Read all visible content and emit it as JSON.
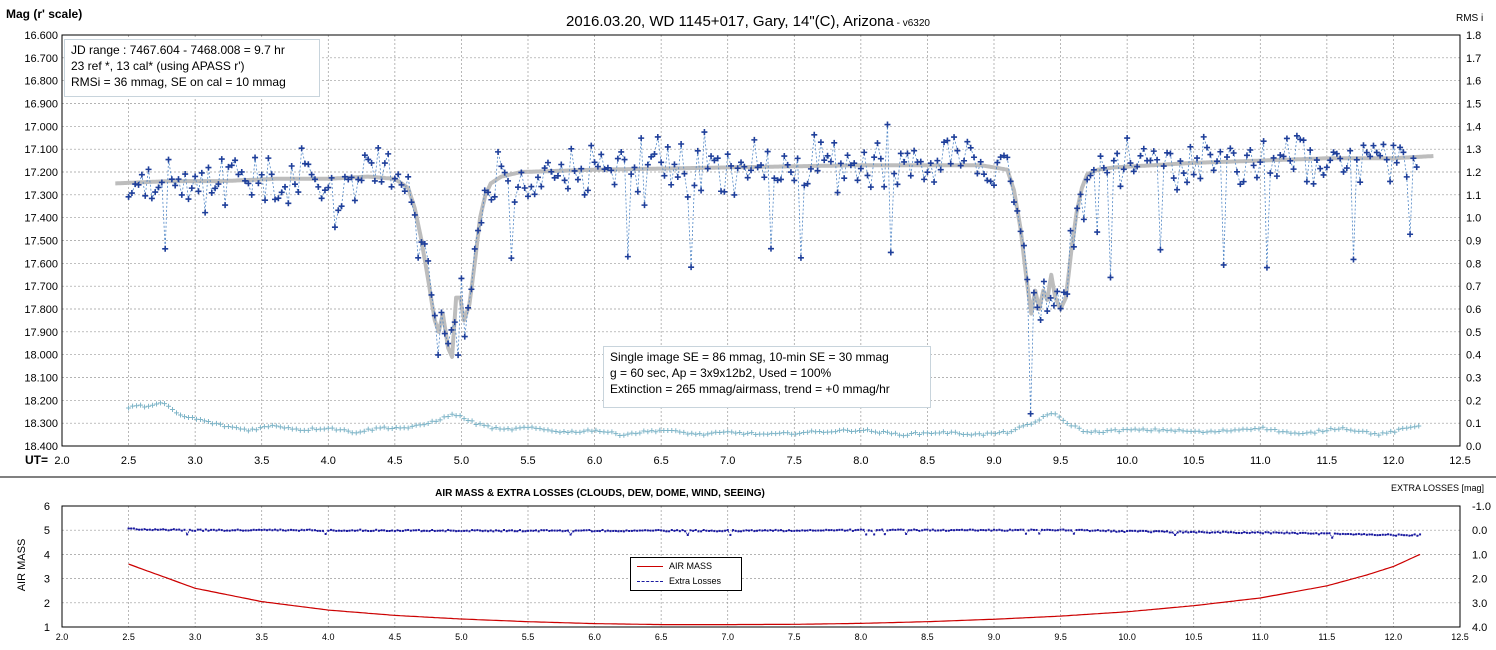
{
  "title": "2016.03.20,  WD 1145+017,  Gary,  14\"(C), Arizona",
  "version": " - v6320",
  "top_panel": {
    "ylabel_left": "Mag (r' scale)",
    "ylabel_right": "RMS i",
    "ut_label": "UT=",
    "info_box_1": [
      "JD range  : 7467.604 - 7468.008  = 9.7 hr",
      " 23 ref *, 13 cal* (using APASS r')",
      "RMSi = 36 mmag, SE on cal = 10 mmag"
    ],
    "info_box_2": [
      "Single image SE = 86 mmag, 10-min SE = 30 mmag",
      "g = 60 sec, Ap = 3x9x12b2, Used = 100%",
      "Extinction = 265 mmag/airmass, trend = +0 mmag/hr"
    ]
  },
  "bottom_panel": {
    "title": "AIR MASS & EXTRA LOSSES (CLOUDS, DEW, DOME, WIND, SEEING)",
    "ylabel_left": "AIR MASS",
    "ylabel_right": "EXTRA LOSSES [mag]",
    "legend": [
      "AIR MASS",
      "Extra Losses"
    ]
  },
  "colors": {
    "data": "#1f3f9a",
    "model": "#bdbdbd",
    "rms": "#7fb5c8",
    "airmass": "#cc0000",
    "extra": "#1a1aa0",
    "grid": "#9a9a9a"
  },
  "chart_data": [
    {
      "type": "scatter",
      "title": "2016.03.20,  WD 1145+017,  Gary,  14\"(C), Arizona",
      "xlabel": "UT",
      "ylabel": "Mag (r' scale)",
      "y2label": "RMS i",
      "xlim": [
        2.0,
        12.5
      ],
      "ylim": [
        18.4,
        16.6
      ],
      "y2lim": [
        0.0,
        1.8
      ],
      "x_ticks": [
        "2.0",
        "2.5",
        "3.0",
        "3.5",
        "4.0",
        "4.5",
        "5.0",
        "5.5",
        "6.0",
        "6.5",
        "7.0",
        "7.5",
        "8.0",
        "8.5",
        "9.0",
        "9.5",
        "10.0",
        "10.5",
        "11.0",
        "11.5",
        "12.0",
        "12.5"
      ],
      "y_ticks": [
        "16.600",
        "16.700",
        "16.800",
        "16.900",
        "17.000",
        "17.100",
        "17.200",
        "17.300",
        "17.400",
        "17.500",
        "17.600",
        "17.700",
        "17.800",
        "17.900",
        "18.000",
        "18.100",
        "18.200",
        "18.300",
        "18.400"
      ],
      "y2_ticks": [
        "1.8",
        "1.7",
        "1.6",
        "1.5",
        "1.4",
        "1.3",
        "1.2",
        "1.1",
        "1.0",
        "0.9",
        "0.8",
        "0.7",
        "0.6",
        "0.5",
        "0.4",
        "0.3",
        "0.2",
        "0.1",
        "0.0"
      ],
      "grid": true,
      "series": [
        {
          "kind": "model",
          "x": [
            2.4,
            2.8,
            3.2,
            3.6,
            4.0,
            4.3,
            4.5,
            4.6,
            4.65,
            4.7,
            4.75,
            4.78,
            4.8,
            4.83,
            4.86,
            4.9,
            4.93,
            4.96,
            4.99,
            5.02,
            5.06,
            5.1,
            5.14,
            5.18,
            5.22,
            5.3,
            5.45,
            6.0,
            7.0,
            8.0,
            8.5,
            8.9,
            9.1,
            9.15,
            9.2,
            9.24,
            9.28,
            9.31,
            9.34,
            9.37,
            9.4,
            9.43,
            9.46,
            9.5,
            9.54,
            9.58,
            9.62,
            9.66,
            9.7,
            9.78,
            9.9,
            10.5,
            11.0,
            11.5,
            12.0,
            12.3
          ],
          "y": [
            17.25,
            17.24,
            17.24,
            17.23,
            17.23,
            17.22,
            17.23,
            17.27,
            17.36,
            17.5,
            17.67,
            17.78,
            17.85,
            17.9,
            17.82,
            17.97,
            18.01,
            17.75,
            17.75,
            17.85,
            17.78,
            17.6,
            17.4,
            17.3,
            17.25,
            17.22,
            17.2,
            17.19,
            17.18,
            17.17,
            17.17,
            17.17,
            17.19,
            17.28,
            17.45,
            17.65,
            17.82,
            17.72,
            17.8,
            17.72,
            17.76,
            17.65,
            17.75,
            17.8,
            17.75,
            17.55,
            17.38,
            17.27,
            17.21,
            17.19,
            17.18,
            17.16,
            17.15,
            17.14,
            17.14,
            17.13
          ]
        },
        {
          "kind": "rms_i",
          "x": [
            2.5,
            2.7,
            2.75,
            2.8,
            2.9,
            3.0,
            3.2,
            3.4,
            3.6,
            3.8,
            4.0,
            4.2,
            4.4,
            4.6,
            4.7,
            4.85,
            4.95,
            5.1,
            5.3,
            5.5,
            5.8,
            6.0,
            6.2,
            6.5,
            6.8,
            7.0,
            7.3,
            7.6,
            8.0,
            8.3,
            8.6,
            8.9,
            9.1,
            9.3,
            9.4,
            9.45,
            9.55,
            9.7,
            10.0,
            10.3,
            10.6,
            11.0,
            11.3,
            11.6,
            11.9,
            12.2
          ],
          "y": [
            0.17,
            0.18,
            0.19,
            0.17,
            0.13,
            0.12,
            0.09,
            0.07,
            0.09,
            0.07,
            0.08,
            0.06,
            0.08,
            0.08,
            0.09,
            0.12,
            0.14,
            0.1,
            0.07,
            0.08,
            0.06,
            0.07,
            0.05,
            0.07,
            0.05,
            0.06,
            0.05,
            0.06,
            0.07,
            0.05,
            0.06,
            0.05,
            0.06,
            0.1,
            0.14,
            0.14,
            0.1,
            0.06,
            0.07,
            0.07,
            0.06,
            0.08,
            0.05,
            0.08,
            0.05,
            0.09
          ]
        }
      ]
    },
    {
      "type": "line",
      "title": "AIR MASS & EXTRA LOSSES (CLOUDS, DEW, DOME, WIND, SEEING)",
      "ylabel": "AIR MASS",
      "y2label": "EXTRA LOSSES [mag]",
      "xlim": [
        2.0,
        12.5
      ],
      "ylim": [
        1,
        6
      ],
      "y2lim": [
        4.0,
        -1.0
      ],
      "x_ticks": [
        "2.0",
        "2.5",
        "3.0",
        "3.5",
        "4.0",
        "4.5",
        "5.0",
        "5.5",
        "6.0",
        "6.5",
        "7.0",
        "7.5",
        "8.0",
        "8.5",
        "9.0",
        "9.5",
        "10.0",
        "10.5",
        "11.0",
        "11.5",
        "12.0",
        "12.5"
      ],
      "y_ticks": [
        "6",
        "5",
        "4",
        "3",
        "2",
        "1"
      ],
      "y2_ticks": [
        "-1.0",
        "0.0",
        "1.0",
        "2.0",
        "3.0",
        "4.0"
      ],
      "grid": true,
      "legend_position": "center",
      "series": [
        {
          "name": "AIR MASS",
          "x": [
            2.5,
            3.0,
            3.5,
            4.0,
            4.5,
            5.0,
            5.5,
            6.0,
            6.5,
            7.0,
            7.5,
            8.0,
            8.5,
            9.0,
            9.5,
            10.0,
            10.5,
            11.0,
            11.5,
            11.8,
            12.0,
            12.2
          ],
          "y": [
            3.6,
            2.6,
            2.05,
            1.7,
            1.48,
            1.33,
            1.22,
            1.14,
            1.1,
            1.1,
            1.11,
            1.15,
            1.22,
            1.32,
            1.45,
            1.63,
            1.88,
            2.2,
            2.7,
            3.15,
            3.5,
            4.0
          ]
        },
        {
          "name": "Extra Losses",
          "x": [
            2.5,
            3.0,
            4.0,
            5.0,
            6.0,
            7.0,
            8.0,
            9.0,
            9.5,
            10.0,
            10.5,
            11.0,
            11.5,
            12.0,
            12.2
          ],
          "y": [
            -0.05,
            0.0,
            0.0,
            0.02,
            0.02,
            0.02,
            0.0,
            0.0,
            -0.02,
            0.05,
            0.08,
            0.1,
            0.15,
            0.2,
            0.2
          ]
        }
      ]
    }
  ]
}
